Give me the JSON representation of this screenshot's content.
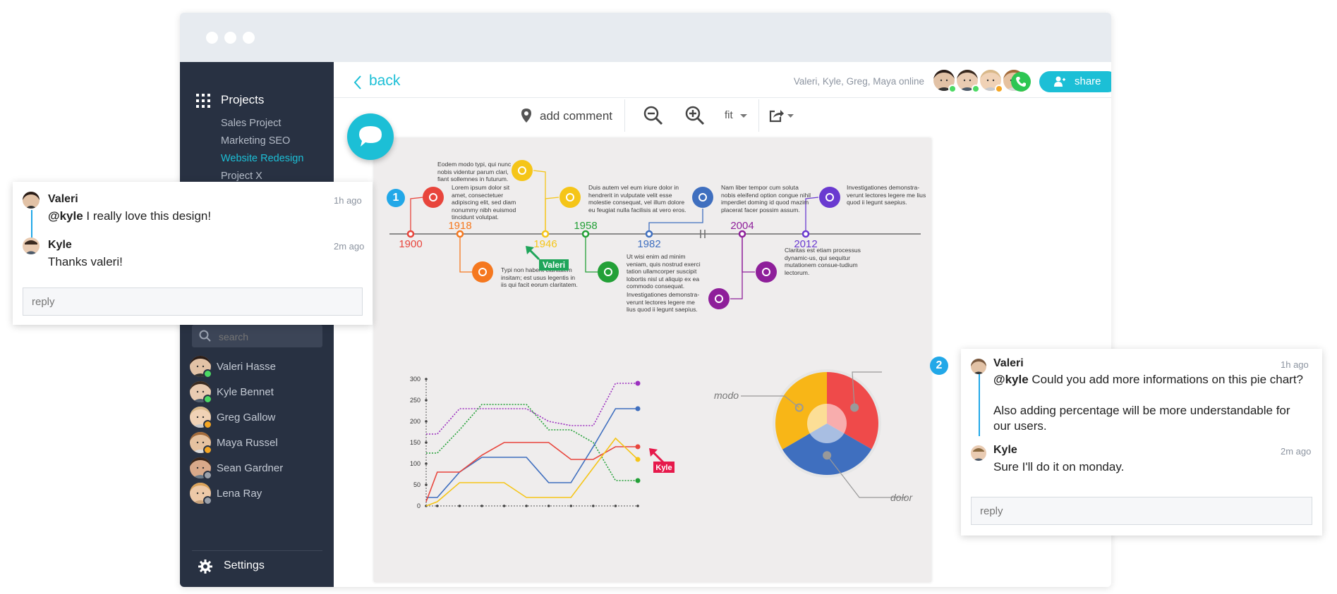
{
  "header": {
    "back_label": "back",
    "online_text": "Valeri, Kyle, Greg, Maya online",
    "share_label": "share"
  },
  "sidebar": {
    "projects_label": "Projects",
    "projects": [
      {
        "label": "Sales Project",
        "active": false
      },
      {
        "label": "Marketing SEO",
        "active": false
      },
      {
        "label": "Website Redesign",
        "active": true
      },
      {
        "label": "Project X",
        "active": false
      }
    ],
    "search_placeholder": "search",
    "users": [
      {
        "name": "Valeri Hasse",
        "status_color": "#4cd964"
      },
      {
        "name": "Kyle Bennet",
        "status_color": "#4cd964"
      },
      {
        "name": "Greg Gallow",
        "status_color": "#f5a623"
      },
      {
        "name": "Maya Russel",
        "status_color": "#f5a623"
      },
      {
        "name": "Sean Gardner",
        "status_color": "#9aa0aa"
      },
      {
        "name": "Lena Ray",
        "status_color": "#9aa0aa"
      }
    ],
    "settings_label": "Settings"
  },
  "toolbar": {
    "add_comment_label": "add comment",
    "zoom_label": "fit"
  },
  "timeline": {
    "years": [
      {
        "year": "1900",
        "color": "#e8453c"
      },
      {
        "year": "1918",
        "color": "#f5781f"
      },
      {
        "year": "1946",
        "color": "#f5c518"
      },
      {
        "year": "1958",
        "color": "#23a037"
      },
      {
        "year": "1982",
        "color": "#3f6fbf"
      },
      {
        "year": "2004",
        "color": "#8e1f9a"
      },
      {
        "year": "2012",
        "color": "#6a3ad0"
      }
    ],
    "texts": [
      "Eodem modo typi, qui nunc nobis videntur parum clari, fiant sollemnes in futurum.",
      "Lorem ipsum dolor sit amet, consectetuer adipiscing elit, sed diam nonummy nibh euismod tincidunt volutpat.",
      "Duis autem vel eum iriure dolor in hendrerit in vulputate velit esse molestie consequat, vel illum dolore eu feugiat nulla facilisis at vero eros.",
      "Nam liber tempor cum soluta nobis eleifend option congue nihil imperdiet doming id quod mazim placerat facer possim assum.",
      "Investigationes demonstra-verunt lectores legere me lius quod ii legunt saepius.",
      "Typi non habent claritatem insitam; est usus legentis in iis qui facit eorum claritatem.",
      "Ut wisi enim ad minim veniam, quis nostrud exerci tation ullamcorper suscipit lobortis nisl ut aliquip ex ea commodo consequat.",
      "Investigationes demonstra-verunt lectores legere me lius quod ii legunt saepius.",
      "Claritas est etiam processus dynamic-us, qui sequitur mutationem consue-tudium lectorum."
    ],
    "cursor_label": "Valeri"
  },
  "chart_data": [
    {
      "type": "line",
      "x": [
        "2003",
        "2004",
        "2005",
        "2006",
        "2007",
        "2008",
        "2009",
        "2010",
        "2011",
        "2012"
      ],
      "ylim": [
        0,
        300
      ],
      "yticks": [
        0,
        50,
        100,
        150,
        200,
        250,
        300
      ],
      "series": [
        {
          "color": "#9b2fbf",
          "style": "dotted",
          "points": [
            [
              2002.5,
              170
            ],
            [
              2003,
              170
            ],
            [
              2004,
              230
            ],
            [
              2005,
              230
            ],
            [
              2006,
              230
            ],
            [
              2007,
              230
            ],
            [
              2008,
              200
            ],
            [
              2009,
              190
            ],
            [
              2010,
              190
            ],
            [
              2011,
              290
            ],
            [
              2012,
              290
            ]
          ]
        },
        {
          "color": "#23a037",
          "style": "dotted",
          "points": [
            [
              2002.5,
              125
            ],
            [
              2003,
              125
            ],
            [
              2004,
              180
            ],
            [
              2005,
              240
            ],
            [
              2006,
              240
            ],
            [
              2007,
              240
            ],
            [
              2008,
              180
            ],
            [
              2009,
              180
            ],
            [
              2010,
              150
            ],
            [
              2011,
              60
            ],
            [
              2012,
              60
            ]
          ]
        },
        {
          "color": "#3f6fbf",
          "style": "solid",
          "points": [
            [
              2002.5,
              20
            ],
            [
              2003,
              20
            ],
            [
              2004,
              80
            ],
            [
              2005,
              115
            ],
            [
              2006,
              115
            ],
            [
              2007,
              115
            ],
            [
              2008,
              55
            ],
            [
              2009,
              55
            ],
            [
              2010,
              140
            ],
            [
              2011,
              230
            ],
            [
              2012,
              230
            ]
          ]
        },
        {
          "color": "#e8453c",
          "style": "solid",
          "points": [
            [
              2002.5,
              10
            ],
            [
              2003,
              80
            ],
            [
              2004,
              80
            ],
            [
              2005,
              120
            ],
            [
              2006,
              150
            ],
            [
              2007,
              150
            ],
            [
              2008,
              150
            ],
            [
              2009,
              110
            ],
            [
              2010,
              110
            ],
            [
              2011,
              140
            ],
            [
              2012,
              140
            ]
          ]
        },
        {
          "color": "#f5c518",
          "style": "solid",
          "points": [
            [
              2002.5,
              0
            ],
            [
              2003,
              10
            ],
            [
              2004,
              55
            ],
            [
              2005,
              55
            ],
            [
              2006,
              55
            ],
            [
              2007,
              20
            ],
            [
              2008,
              20
            ],
            [
              2009,
              20
            ],
            [
              2010,
              90
            ],
            [
              2011,
              160
            ],
            [
              2012,
              110
            ]
          ]
        }
      ],
      "cursor_label": "Kyle"
    },
    {
      "type": "pie",
      "labels": [
        "modo",
        "dolor"
      ],
      "slices": [
        {
          "value": 33.3,
          "color": "#ef4a4a"
        },
        {
          "value": 33.3,
          "color": "#3f6fbf"
        },
        {
          "value": 33.4,
          "color": "#f8b617"
        }
      ]
    }
  ],
  "comments": {
    "thread1": {
      "number": "1",
      "items": [
        {
          "name": "Valeri",
          "time": "1h ago",
          "mention": "@kyle",
          "text": " I really love this design!"
        },
        {
          "name": "Kyle",
          "time": "2m ago",
          "mention": "",
          "text": "Thanks valeri!"
        }
      ],
      "reply_placeholder": "reply"
    },
    "thread2": {
      "number": "2",
      "items": [
        {
          "name": "Valeri",
          "time": "1h ago",
          "mention": "@kyle",
          "text": " Could you add more informations on this pie chart?"
        },
        {
          "name": "Kyle",
          "time": "2m ago",
          "mention": "",
          "text": "Sure I'll do it on monday."
        }
      ],
      "extra_line": "Also adding percentage will be more understandable for our users.",
      "reply_placeholder": "reply"
    }
  },
  "colors": {
    "accent": "#1cbfd6",
    "sidebar_bg": "#283142",
    "call_green": "#2dc653",
    "badge_blue": "#22a8e8"
  }
}
